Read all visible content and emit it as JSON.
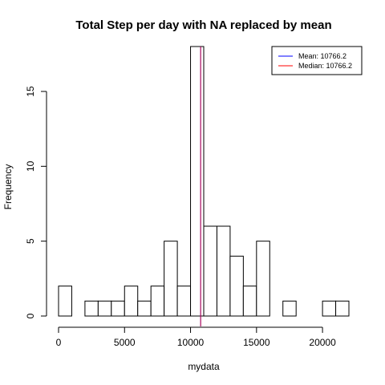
{
  "chart_data": {
    "type": "bar",
    "title": "Total Step per day with NA replaced by mean",
    "xlabel": "mydata",
    "ylabel": "Frequency",
    "xlim": [
      0,
      22000
    ],
    "ylim": [
      0,
      18
    ],
    "x_ticks": [
      0,
      5000,
      10000,
      15000,
      20000
    ],
    "y_ticks": [
      0,
      5,
      10,
      15
    ],
    "bin_width": 1000,
    "bins": [
      {
        "start": 0,
        "end": 1000,
        "count": 2
      },
      {
        "start": 1000,
        "end": 2000,
        "count": 0
      },
      {
        "start": 2000,
        "end": 3000,
        "count": 1
      },
      {
        "start": 3000,
        "end": 4000,
        "count": 1
      },
      {
        "start": 4000,
        "end": 5000,
        "count": 1
      },
      {
        "start": 5000,
        "end": 6000,
        "count": 2
      },
      {
        "start": 6000,
        "end": 7000,
        "count": 1
      },
      {
        "start": 7000,
        "end": 8000,
        "count": 2
      },
      {
        "start": 8000,
        "end": 9000,
        "count": 5
      },
      {
        "start": 9000,
        "end": 10000,
        "count": 2
      },
      {
        "start": 10000,
        "end": 11000,
        "count": 18
      },
      {
        "start": 11000,
        "end": 12000,
        "count": 6
      },
      {
        "start": 12000,
        "end": 13000,
        "count": 6
      },
      {
        "start": 13000,
        "end": 14000,
        "count": 4
      },
      {
        "start": 14000,
        "end": 15000,
        "count": 2
      },
      {
        "start": 15000,
        "end": 16000,
        "count": 5
      },
      {
        "start": 16000,
        "end": 17000,
        "count": 0
      },
      {
        "start": 17000,
        "end": 18000,
        "count": 1
      },
      {
        "start": 18000,
        "end": 19000,
        "count": 0
      },
      {
        "start": 19000,
        "end": 20000,
        "count": 0
      },
      {
        "start": 20000,
        "end": 21000,
        "count": 1
      },
      {
        "start": 21000,
        "end": 22000,
        "count": 1
      }
    ],
    "reference_lines": [
      {
        "label": "Mean:",
        "value": 10766.2,
        "value_text": "10766.2",
        "color": "#0000ff"
      },
      {
        "label": "Median:",
        "value": 10766.2,
        "value_text": "10766.2",
        "color": "#ff0000"
      }
    ],
    "legend_position": "top-right"
  }
}
